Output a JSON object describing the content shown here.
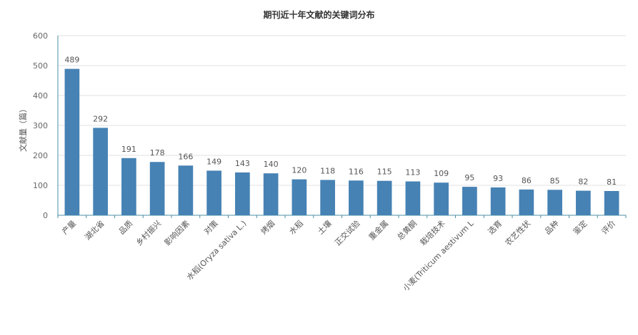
{
  "chart_data": {
    "type": "bar",
    "title": "期刊近十年文献的关键词分布",
    "xlabel": "",
    "ylabel": "文献量（篇）",
    "ylim": [
      0,
      600
    ],
    "yticks": [
      0,
      100,
      200,
      300,
      400,
      500,
      600
    ],
    "grid": true,
    "legend": "none",
    "bar_color": "#4682B4",
    "categories": [
      "产量",
      "湖北省",
      "品质",
      "乡村振兴",
      "影响因素",
      "对策",
      "水稻(Oryza sativa L.)",
      "烤烟",
      "水稻",
      "土壤",
      "正交试验",
      "重金属",
      "总黄酮",
      "栽培技术",
      "小麦(Triticum aestivum L",
      "选育",
      "农艺性状",
      "品种",
      "鉴定",
      "评价"
    ],
    "values": [
      489,
      292,
      191,
      178,
      166,
      149,
      143,
      140,
      120,
      118,
      116,
      115,
      113,
      109,
      95,
      93,
      86,
      85,
      82,
      81
    ]
  }
}
